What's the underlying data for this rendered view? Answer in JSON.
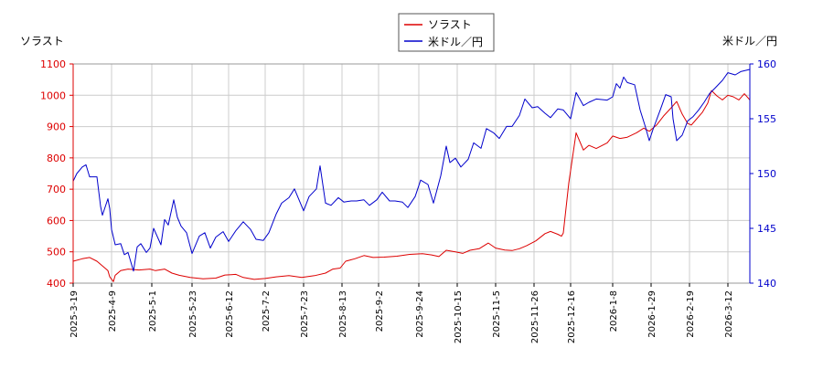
{
  "chart_data": {
    "type": "line",
    "legend": {
      "placement": "top-center",
      "entries": [
        {
          "label": "ソラスト",
          "color": "#dd0000"
        },
        {
          "label": "米ドル／円",
          "color": "#0000cc"
        }
      ]
    },
    "left_axis": {
      "label": "ソラスト",
      "range": [
        400,
        1100
      ],
      "ticks": [
        400,
        500,
        600,
        700,
        800,
        900,
        1000,
        1100
      ],
      "color": "#dd0000"
    },
    "right_axis": {
      "label": "米ドル／円",
      "range": [
        140,
        160
      ],
      "ticks": [
        140,
        145,
        150,
        155,
        160
      ],
      "color": "#0000cc"
    },
    "x_axis": {
      "range": [
        "2025-03-19",
        "2026-03-24"
      ],
      "tick_labels": [
        "2025-3-19",
        "2025-4-9",
        "2025-5-1",
        "2025-5-23",
        "2025-6-12",
        "2025-7-2",
        "2025-7-23",
        "2025-8-13",
        "2025-9-2",
        "2025-9-24",
        "2025-10-15",
        "2025-11-5",
        "2025-11-26",
        "2025-12-16",
        "2026-1-8",
        "2026-1-29",
        "2026-2-19",
        "2026-3-12"
      ],
      "tick_dates": [
        "2025-03-19",
        "2025-04-09",
        "2025-05-01",
        "2025-05-23",
        "2025-06-12",
        "2025-07-02",
        "2025-07-23",
        "2025-08-13",
        "2025-09-02",
        "2025-09-24",
        "2025-10-15",
        "2025-11-05",
        "2025-11-26",
        "2025-12-16",
        "2026-01-08",
        "2026-01-29",
        "2026-02-19",
        "2026-03-12"
      ]
    },
    "grid": true,
    "series": [
      {
        "name": "ソラスト",
        "axis": "left",
        "color": "#dd0000",
        "points": [
          [
            "2025-03-19",
            470
          ],
          [
            "2025-03-24",
            478
          ],
          [
            "2025-03-28",
            482
          ],
          [
            "2025-04-01",
            470
          ],
          [
            "2025-04-04",
            455
          ],
          [
            "2025-04-07",
            440
          ],
          [
            "2025-04-08",
            420
          ],
          [
            "2025-04-10",
            405
          ],
          [
            "2025-04-11",
            425
          ],
          [
            "2025-04-14",
            440
          ],
          [
            "2025-04-18",
            445
          ],
          [
            "2025-04-24",
            442
          ],
          [
            "2025-04-30",
            445
          ],
          [
            "2025-05-03",
            440
          ],
          [
            "2025-05-08",
            445
          ],
          [
            "2025-05-12",
            432
          ],
          [
            "2025-05-16",
            425
          ],
          [
            "2025-05-22",
            418
          ],
          [
            "2025-05-29",
            414
          ],
          [
            "2025-06-05",
            416
          ],
          [
            "2025-06-10",
            426
          ],
          [
            "2025-06-16",
            428
          ],
          [
            "2025-06-20",
            418
          ],
          [
            "2025-06-26",
            412
          ],
          [
            "2025-07-02",
            415
          ],
          [
            "2025-07-08",
            420
          ],
          [
            "2025-07-15",
            424
          ],
          [
            "2025-07-22",
            418
          ],
          [
            "2025-07-29",
            424
          ],
          [
            "2025-08-04",
            432
          ],
          [
            "2025-08-08",
            445
          ],
          [
            "2025-08-12",
            448
          ],
          [
            "2025-08-15",
            470
          ],
          [
            "2025-08-20",
            478
          ],
          [
            "2025-08-25",
            488
          ],
          [
            "2025-08-30",
            482
          ],
          [
            "2025-09-05",
            483
          ],
          [
            "2025-09-12",
            486
          ],
          [
            "2025-09-19",
            492
          ],
          [
            "2025-09-26",
            494
          ],
          [
            "2025-10-01",
            490
          ],
          [
            "2025-10-05",
            485
          ],
          [
            "2025-10-09",
            505
          ],
          [
            "2025-10-14",
            500
          ],
          [
            "2025-10-18",
            495
          ],
          [
            "2025-10-22",
            505
          ],
          [
            "2025-10-27",
            510
          ],
          [
            "2025-11-01",
            528
          ],
          [
            "2025-11-05",
            512
          ],
          [
            "2025-11-10",
            506
          ],
          [
            "2025-11-14",
            504
          ],
          [
            "2025-11-18",
            510
          ],
          [
            "2025-11-22",
            520
          ],
          [
            "2025-11-27",
            535
          ],
          [
            "2025-12-02",
            558
          ],
          [
            "2025-12-05",
            565
          ],
          [
            "2025-12-09",
            556
          ],
          [
            "2025-12-11",
            550
          ],
          [
            "2025-12-12",
            560
          ],
          [
            "2025-12-15",
            720
          ],
          [
            "2025-12-17",
            800
          ],
          [
            "2025-12-19",
            880
          ],
          [
            "2025-12-23",
            825
          ],
          [
            "2025-12-26",
            840
          ],
          [
            "2025-12-30",
            830
          ],
          [
            "2026-01-05",
            848
          ],
          [
            "2026-01-08",
            870
          ],
          [
            "2026-01-12",
            862
          ],
          [
            "2026-01-16",
            866
          ],
          [
            "2026-01-21",
            880
          ],
          [
            "2026-01-25",
            895
          ],
          [
            "2026-01-28",
            885
          ],
          [
            "2026-02-01",
            905
          ],
          [
            "2026-02-05",
            935
          ],
          [
            "2026-02-09",
            960
          ],
          [
            "2026-02-12",
            980
          ],
          [
            "2026-02-15",
            940
          ],
          [
            "2026-02-18",
            910
          ],
          [
            "2026-02-20",
            905
          ],
          [
            "2026-02-23",
            925
          ],
          [
            "2026-02-26",
            945
          ],
          [
            "2026-03-01",
            975
          ],
          [
            "2026-03-03",
            1015
          ],
          [
            "2026-03-06",
            998
          ],
          [
            "2026-03-09",
            985
          ],
          [
            "2026-03-12",
            1000
          ],
          [
            "2026-03-15",
            995
          ],
          [
            "2026-03-18",
            985
          ],
          [
            "2026-03-21",
            1005
          ],
          [
            "2026-03-24",
            985
          ]
        ]
      },
      {
        "name": "米ドル／円",
        "axis": "right",
        "color": "#0000cc",
        "points": [
          [
            "2025-03-19",
            149.3
          ],
          [
            "2025-03-21",
            150.0
          ],
          [
            "2025-03-24",
            150.6
          ],
          [
            "2025-03-26",
            150.8
          ],
          [
            "2025-03-28",
            149.7
          ],
          [
            "2025-04-01",
            149.7
          ],
          [
            "2025-04-03",
            147.0
          ],
          [
            "2025-04-04",
            146.2
          ],
          [
            "2025-04-07",
            147.7
          ],
          [
            "2025-04-08",
            146.8
          ],
          [
            "2025-04-09",
            144.9
          ],
          [
            "2025-04-11",
            143.5
          ],
          [
            "2025-04-14",
            143.6
          ],
          [
            "2025-04-16",
            142.6
          ],
          [
            "2025-04-18",
            142.8
          ],
          [
            "2025-04-21",
            141.1
          ],
          [
            "2025-04-23",
            143.3
          ],
          [
            "2025-04-25",
            143.6
          ],
          [
            "2025-04-28",
            142.8
          ],
          [
            "2025-04-30",
            143.2
          ],
          [
            "2025-05-02",
            145.0
          ],
          [
            "2025-05-06",
            143.5
          ],
          [
            "2025-05-08",
            145.8
          ],
          [
            "2025-05-10",
            145.3
          ],
          [
            "2025-05-13",
            147.6
          ],
          [
            "2025-05-15",
            146.0
          ],
          [
            "2025-05-17",
            145.2
          ],
          [
            "2025-05-20",
            144.6
          ],
          [
            "2025-05-23",
            142.7
          ],
          [
            "2025-05-27",
            144.3
          ],
          [
            "2025-05-30",
            144.6
          ],
          [
            "2025-06-02",
            143.2
          ],
          [
            "2025-06-05",
            144.2
          ],
          [
            "2025-06-09",
            144.7
          ],
          [
            "2025-06-12",
            143.8
          ],
          [
            "2025-06-16",
            144.8
          ],
          [
            "2025-06-20",
            145.6
          ],
          [
            "2025-06-24",
            144.9
          ],
          [
            "2025-06-27",
            144.0
          ],
          [
            "2025-07-01",
            143.9
          ],
          [
            "2025-07-04",
            144.6
          ],
          [
            "2025-07-08",
            146.3
          ],
          [
            "2025-07-11",
            147.3
          ],
          [
            "2025-07-15",
            147.8
          ],
          [
            "2025-07-18",
            148.6
          ],
          [
            "2025-07-21",
            147.4
          ],
          [
            "2025-07-23",
            146.6
          ],
          [
            "2025-07-26",
            147.9
          ],
          [
            "2025-07-30",
            148.6
          ],
          [
            "2025-08-01",
            150.7
          ],
          [
            "2025-08-04",
            147.3
          ],
          [
            "2025-08-07",
            147.1
          ],
          [
            "2025-08-11",
            147.8
          ],
          [
            "2025-08-14",
            147.4
          ],
          [
            "2025-08-18",
            147.5
          ],
          [
            "2025-08-21",
            147.5
          ],
          [
            "2025-08-25",
            147.6
          ],
          [
            "2025-08-28",
            147.1
          ],
          [
            "2025-09-01",
            147.6
          ],
          [
            "2025-09-04",
            148.3
          ],
          [
            "2025-09-08",
            147.5
          ],
          [
            "2025-09-11",
            147.5
          ],
          [
            "2025-09-15",
            147.4
          ],
          [
            "2025-09-18",
            146.9
          ],
          [
            "2025-09-22",
            147.9
          ],
          [
            "2025-09-25",
            149.4
          ],
          [
            "2025-09-29",
            149.0
          ],
          [
            "2025-10-02",
            147.3
          ],
          [
            "2025-10-06",
            149.8
          ],
          [
            "2025-10-09",
            152.5
          ],
          [
            "2025-10-11",
            151.0
          ],
          [
            "2025-10-14",
            151.4
          ],
          [
            "2025-10-17",
            150.6
          ],
          [
            "2025-10-21",
            151.3
          ],
          [
            "2025-10-24",
            152.8
          ],
          [
            "2025-10-28",
            152.3
          ],
          [
            "2025-10-31",
            154.1
          ],
          [
            "2025-11-04",
            153.7
          ],
          [
            "2025-11-07",
            153.2
          ],
          [
            "2025-11-11",
            154.3
          ],
          [
            "2025-11-14",
            154.3
          ],
          [
            "2025-11-18",
            155.3
          ],
          [
            "2025-11-21",
            156.8
          ],
          [
            "2025-11-25",
            156.0
          ],
          [
            "2025-11-28",
            156.1
          ],
          [
            "2025-12-02",
            155.5
          ],
          [
            "2025-12-05",
            155.1
          ],
          [
            "2025-12-09",
            155.9
          ],
          [
            "2025-12-12",
            155.8
          ],
          [
            "2025-12-16",
            155.0
          ],
          [
            "2025-12-19",
            157.4
          ],
          [
            "2025-12-23",
            156.2
          ],
          [
            "2025-12-26",
            156.5
          ],
          [
            "2025-12-30",
            156.8
          ],
          [
            "2026-01-05",
            156.7
          ],
          [
            "2026-01-08",
            157.0
          ],
          [
            "2026-01-10",
            158.2
          ],
          [
            "2026-01-12",
            157.8
          ],
          [
            "2026-01-14",
            158.8
          ],
          [
            "2026-01-16",
            158.3
          ],
          [
            "2026-01-20",
            158.1
          ],
          [
            "2026-01-23",
            155.8
          ],
          [
            "2026-01-26",
            154.2
          ],
          [
            "2026-01-28",
            153.0
          ],
          [
            "2026-01-30",
            154.0
          ],
          [
            "2026-02-03",
            155.8
          ],
          [
            "2026-02-06",
            157.2
          ],
          [
            "2026-02-09",
            157.0
          ],
          [
            "2026-02-10",
            155.0
          ],
          [
            "2026-02-12",
            153.0
          ],
          [
            "2026-02-15",
            153.5
          ],
          [
            "2026-02-18",
            154.8
          ],
          [
            "2026-02-21",
            155.2
          ],
          [
            "2026-02-24",
            155.8
          ],
          [
            "2026-02-27",
            156.5
          ],
          [
            "2026-03-02",
            157.3
          ],
          [
            "2026-03-05",
            157.8
          ],
          [
            "2026-03-09",
            158.5
          ],
          [
            "2026-03-12",
            159.2
          ],
          [
            "2026-03-16",
            159.0
          ],
          [
            "2026-03-19",
            159.3
          ],
          [
            "2026-03-24",
            159.5
          ]
        ]
      }
    ]
  }
}
